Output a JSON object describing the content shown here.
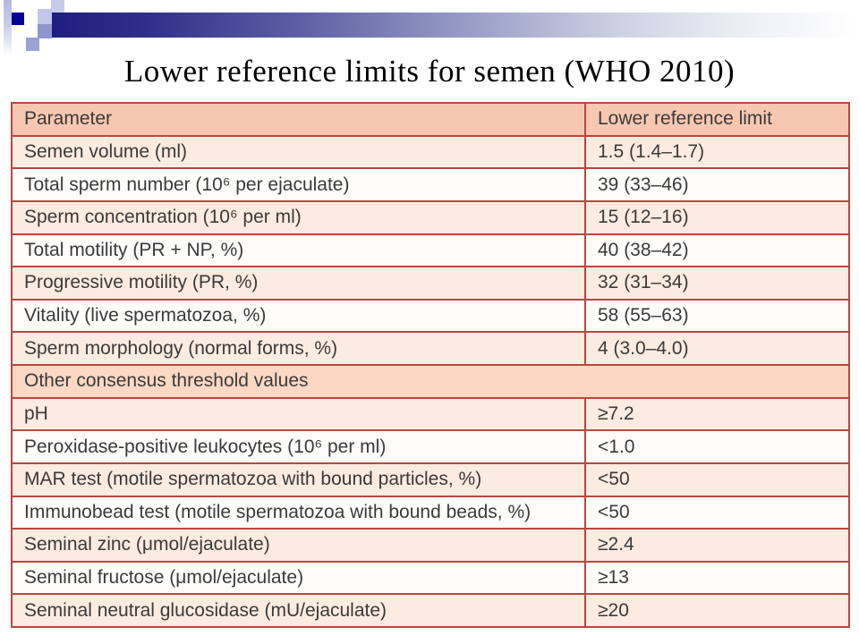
{
  "title": "Lower reference limits for semen (WHO 2010)",
  "decoration": {
    "colors": {
      "navy_square": "#050593",
      "top_square": "#c7cbea",
      "light_square": "#c2c6e8",
      "medium_square": "#8f96cd",
      "lower_square": "#9ba2d6",
      "bar_start": "#1e1e7e",
      "bar_end": "#ffffff"
    }
  },
  "table": {
    "colors": {
      "header_bg": "#f6c8b2",
      "section_bg": "#fbd8c3",
      "peach_bg": "#fcebe1",
      "white_bg": "#fffdfc",
      "border": "#b5493d"
    },
    "rows": [
      {
        "kind": "header",
        "param": "Parameter",
        "value": "Lower reference limit"
      },
      {
        "kind": "data",
        "shade": "peach",
        "param": "Semen volume (ml)",
        "value": "1.5 (1.4–1.7)"
      },
      {
        "kind": "data",
        "shade": "white",
        "param": "Total sperm number (10⁶ per ejaculate)",
        "value": "39 (33–46)"
      },
      {
        "kind": "data",
        "shade": "peach",
        "param": "Sperm concentration (10⁶ per ml)",
        "value": "15 (12–16)"
      },
      {
        "kind": "data",
        "shade": "white",
        "param": "Total motility (PR + NP, %)",
        "value": "40 (38–42)"
      },
      {
        "kind": "data",
        "shade": "peach",
        "param": "Progressive motility (PR, %)",
        "value": "32 (31–34)"
      },
      {
        "kind": "data",
        "shade": "white",
        "param": "Vitality (live spermatozoa, %)",
        "value": "58 (55–63)"
      },
      {
        "kind": "data",
        "shade": "peach",
        "param": "Sperm morphology (normal forms, %)",
        "value": "4 (3.0–4.0)"
      },
      {
        "kind": "section",
        "param": "Other consensus threshold values"
      },
      {
        "kind": "data",
        "shade": "peach",
        "param": "pH",
        "value": "≥7.2"
      },
      {
        "kind": "data",
        "shade": "white",
        "param": "Peroxidase-positive leukocytes (10⁶ per ml)",
        "value": "<1.0"
      },
      {
        "kind": "data",
        "shade": "peach",
        "param": "MAR test (motile spermatozoa with bound particles, %)",
        "value": "<50"
      },
      {
        "kind": "data",
        "shade": "white",
        "param": "Immunobead test (motile spermatozoa with bound beads, %)",
        "value": "<50"
      },
      {
        "kind": "data",
        "shade": "peach",
        "param": "Seminal zinc (μmol/ejaculate)",
        "value": "≥2.4"
      },
      {
        "kind": "data",
        "shade": "white",
        "param": "Seminal fructose (μmol/ejaculate)",
        "value": "≥13"
      },
      {
        "kind": "data",
        "shade": "peach",
        "param": "Seminal neutral glucosidase (mU/ejaculate)",
        "value": "≥20"
      }
    ]
  }
}
